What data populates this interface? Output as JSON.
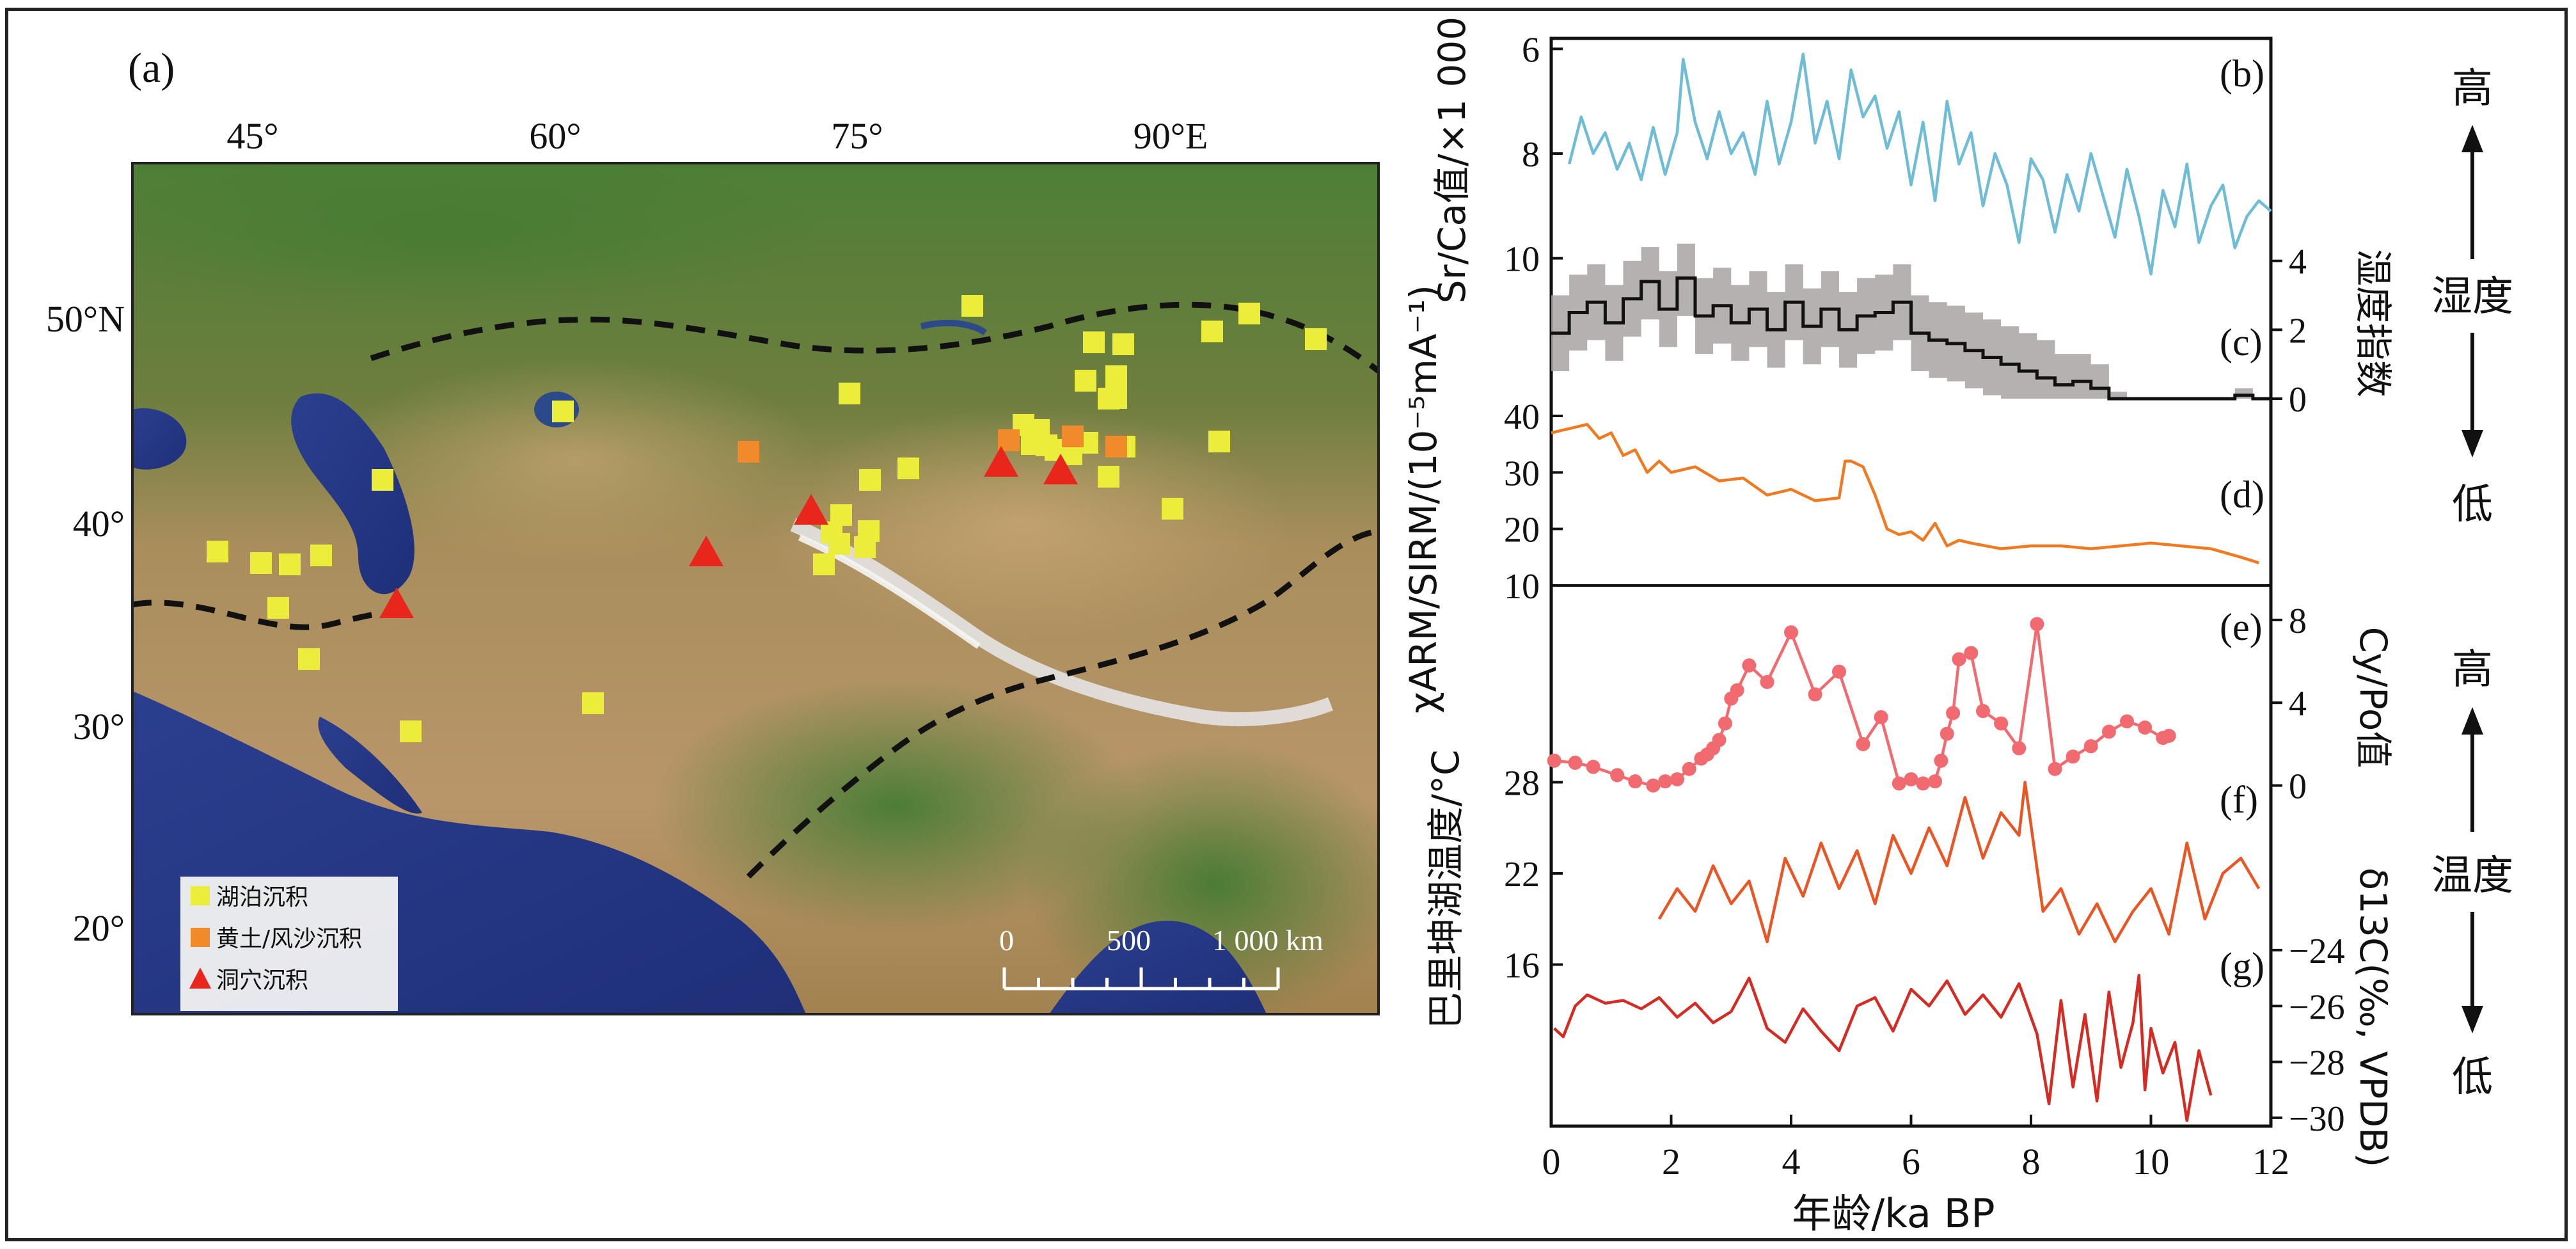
{
  "map": {
    "panel_label": "(a)",
    "lon_ticks": [
      "45°",
      "60°",
      "75°",
      "90°E"
    ],
    "lat_ticks": [
      "50°N",
      "40°",
      "30°",
      "20°"
    ],
    "legend": {
      "lake": "湖泊沉积",
      "loess": "黄土/风沙沉积",
      "cave": "洞穴沉积"
    },
    "scale_bar": {
      "zero": "0",
      "mid": "500",
      "end": "1 000 km"
    },
    "colors": {
      "lake": "#ecec3a",
      "loess": "#f08a2a",
      "cave": "#e8261c"
    }
  },
  "chart_data": [
    {
      "type": "line",
      "panel": "(b)",
      "ylabel": "Sr/Ca值/×1 000",
      "ylim": [
        10.2,
        5.8
      ],
      "y_ticks": [
        6,
        8,
        10
      ],
      "color": "#6fbcd6",
      "x": [
        0.3,
        0.5,
        0.7,
        0.9,
        1.1,
        1.3,
        1.5,
        1.7,
        1.9,
        2.1,
        2.2,
        2.4,
        2.6,
        2.8,
        3.0,
        3.2,
        3.4,
        3.6,
        3.8,
        4.0,
        4.2,
        4.4,
        4.6,
        4.8,
        5.0,
        5.2,
        5.4,
        5.6,
        5.8,
        6.0,
        6.2,
        6.4,
        6.6,
        6.8,
        7.0,
        7.2,
        7.4,
        7.6,
        7.8,
        8.0,
        8.2,
        8.4,
        8.6,
        8.8,
        9.0,
        9.2,
        9.4,
        9.6,
        9.8,
        10.0,
        10.2,
        10.4,
        10.6,
        10.8,
        11.0,
        11.2,
        11.4,
        11.6,
        11.8,
        12.0
      ],
      "values": [
        8.2,
        7.3,
        8.0,
        7.6,
        8.3,
        7.8,
        8.5,
        7.5,
        8.4,
        7.6,
        6.2,
        7.4,
        8.1,
        7.2,
        8.0,
        7.6,
        8.4,
        7.0,
        8.2,
        7.4,
        6.1,
        7.8,
        7.0,
        8.1,
        6.4,
        7.3,
        6.9,
        7.9,
        7.2,
        8.6,
        7.4,
        8.9,
        7.0,
        8.2,
        7.6,
        9.0,
        8.0,
        8.6,
        9.7,
        8.1,
        8.5,
        9.5,
        8.4,
        9.1,
        8.0,
        8.8,
        9.6,
        8.3,
        9.2,
        10.3,
        8.7,
        9.4,
        8.2,
        9.7,
        9.0,
        8.6,
        9.8,
        9.2,
        8.9,
        9.1
      ]
    },
    {
      "type": "line",
      "panel": "(c)",
      "ylabel": "湿度指数",
      "ylim": [
        -0.5,
        4.7
      ],
      "y_ticks": [
        0,
        2,
        4
      ],
      "color": "#111111",
      "band_color": "#a9a3a3",
      "x": [
        0,
        0.3,
        0.6,
        0.9,
        1.2,
        1.5,
        1.8,
        2.1,
        2.4,
        2.7,
        3.0,
        3.3,
        3.6,
        3.9,
        4.2,
        4.5,
        4.8,
        5.1,
        5.4,
        5.7,
        6.0,
        6.3,
        6.6,
        6.9,
        7.2,
        7.5,
        7.8,
        8.1,
        8.4,
        8.7,
        9.0,
        9.3,
        9.6,
        9.9,
        10.2,
        10.5,
        10.8,
        11.1,
        11.4,
        11.7,
        12.0
      ],
      "values": [
        1.9,
        2.5,
        2.8,
        2.2,
        2.9,
        3.4,
        2.6,
        3.5,
        2.4,
        2.7,
        2.2,
        2.6,
        2.0,
        2.8,
        2.1,
        2.6,
        2.0,
        2.4,
        2.5,
        2.8,
        1.9,
        1.7,
        1.6,
        1.4,
        1.2,
        1.0,
        0.8,
        0.6,
        0.4,
        0.5,
        0.3,
        0.0,
        0.0,
        0.0,
        0.0,
        0.0,
        0.0,
        0.0,
        0.1,
        0.0,
        0.0
      ],
      "upper": [
        3.0,
        3.6,
        3.9,
        3.3,
        4.0,
        4.4,
        3.7,
        4.5,
        3.5,
        3.8,
        3.3,
        3.7,
        3.1,
        3.9,
        3.2,
        3.7,
        3.1,
        3.5,
        3.6,
        3.9,
        3.0,
        2.8,
        2.7,
        2.5,
        2.3,
        2.1,
        1.9,
        1.7,
        1.3,
        1.3,
        1.0,
        0.2,
        0.0,
        0.0,
        0.0,
        0.0,
        0.0,
        0.0,
        0.3,
        0.0,
        0.0
      ],
      "lower": [
        0.8,
        1.4,
        1.7,
        1.1,
        1.8,
        2.3,
        1.5,
        2.4,
        1.3,
        1.6,
        1.1,
        1.5,
        0.9,
        1.7,
        1.0,
        1.5,
        0.9,
        1.3,
        1.4,
        1.7,
        0.8,
        0.6,
        0.5,
        0.3,
        0.1,
        0.0,
        0.0,
        0.0,
        0.0,
        0.0,
        0.0,
        0.0,
        0.0,
        0.0,
        0.0,
        0.0,
        0.0,
        0.0,
        0.0,
        0.0,
        0.0
      ]
    },
    {
      "type": "line",
      "panel": "(d)",
      "ylabel": "χARM/SIRM/(10⁻⁵mA⁻¹)",
      "ylim": [
        10,
        40
      ],
      "y_ticks": [
        10,
        20,
        30,
        40
      ],
      "color": "#f07a22",
      "x": [
        0,
        0.2,
        0.4,
        0.6,
        0.8,
        1.0,
        1.2,
        1.4,
        1.6,
        1.8,
        2.0,
        2.4,
        2.8,
        3.2,
        3.6,
        4.0,
        4.4,
        4.8,
        4.9,
        5.0,
        5.2,
        5.4,
        5.6,
        5.8,
        6.0,
        6.2,
        6.4,
        6.6,
        6.8,
        7.0,
        7.5,
        8.0,
        8.5,
        9.0,
        9.5,
        10.0,
        10.5,
        11.0,
        11.5,
        11.8
      ],
      "values": [
        37,
        37.5,
        38,
        38.5,
        36,
        37,
        33,
        34,
        30,
        32,
        30,
        31,
        28.5,
        29,
        26,
        27,
        25,
        25.5,
        32,
        32,
        31,
        26,
        20,
        19,
        19.5,
        18,
        21,
        17,
        18,
        17.5,
        16.5,
        17,
        17,
        16.5,
        17,
        17.5,
        17,
        16.5,
        15,
        14
      ]
    },
    {
      "type": "line",
      "panel": "(e)",
      "ylabel": "Cy/Po值",
      "ylim": [
        -1.0,
        9.2
      ],
      "y_ticks": [
        0,
        4,
        8
      ],
      "color": "#f06a6f",
      "markers": true,
      "x": [
        0.05,
        0.4,
        0.7,
        1.1,
        1.4,
        1.7,
        1.9,
        2.1,
        2.3,
        2.5,
        2.6,
        2.7,
        2.8,
        2.9,
        3.0,
        3.1,
        3.3,
        3.6,
        4.0,
        4.4,
        4.8,
        5.2,
        5.5,
        5.8,
        6.0,
        6.2,
        6.4,
        6.5,
        6.6,
        6.7,
        6.8,
        7.0,
        7.2,
        7.5,
        7.8,
        8.1,
        8.4,
        8.7,
        9.0,
        9.3,
        9.6,
        9.9,
        10.2,
        10.3
      ],
      "values": [
        1.2,
        1.1,
        0.9,
        0.5,
        0.2,
        0.0,
        0.2,
        0.3,
        0.8,
        1.3,
        1.5,
        1.8,
        2.2,
        3.0,
        4.2,
        4.6,
        5.8,
        5.0,
        7.4,
        4.4,
        5.5,
        2.0,
        3.3,
        0.1,
        0.3,
        0.1,
        0.2,
        1.2,
        2.5,
        3.5,
        6.1,
        6.4,
        3.6,
        3.0,
        1.8,
        7.8,
        0.8,
        1.4,
        1.9,
        2.6,
        3.1,
        2.8,
        2.3,
        2.4
      ]
    },
    {
      "type": "line",
      "panel": "(f)",
      "ylabel": "巴里坤湖温度/°C",
      "ylim": [
        14,
        30
      ],
      "y_ticks": [
        16,
        22,
        28
      ],
      "color": "#ea5524",
      "x": [
        1.8,
        2.1,
        2.4,
        2.7,
        3.0,
        3.3,
        3.6,
        3.9,
        4.2,
        4.5,
        4.8,
        5.1,
        5.4,
        5.7,
        6.0,
        6.3,
        6.6,
        6.9,
        7.2,
        7.5,
        7.8,
        7.9,
        8.2,
        8.5,
        8.8,
        9.1,
        9.4,
        9.7,
        10.0,
        10.3,
        10.6,
        10.9,
        11.2,
        11.5,
        11.8
      ],
      "values": [
        19,
        21,
        19.5,
        22.5,
        20,
        21.5,
        17.5,
        23,
        20.5,
        24,
        21,
        23.5,
        20,
        24.5,
        22,
        25,
        22.5,
        27,
        23,
        26,
        24.5,
        28,
        19.5,
        21,
        18,
        20,
        17.5,
        19.5,
        21,
        18,
        24,
        19,
        22,
        23,
        21
      ]
    },
    {
      "type": "line",
      "panel": "(g)",
      "ylabel": "δ13C(‰, VPDB)",
      "ylim": [
        -30.3,
        -23.2
      ],
      "y_ticks": [
        -24,
        -26,
        -28,
        -30
      ],
      "color": "#d42b22",
      "x": [
        0.05,
        0.2,
        0.4,
        0.6,
        0.9,
        1.2,
        1.5,
        1.8,
        2.1,
        2.4,
        2.7,
        3.0,
        3.3,
        3.6,
        3.9,
        4.2,
        4.5,
        4.8,
        5.1,
        5.4,
        5.7,
        6.0,
        6.3,
        6.6,
        6.9,
        7.2,
        7.5,
        7.8,
        8.1,
        8.3,
        8.5,
        8.7,
        8.9,
        9.1,
        9.3,
        9.5,
        9.7,
        9.8,
        9.9,
        10.0,
        10.2,
        10.4,
        10.6,
        10.8,
        11.0
      ],
      "values": [
        -26.8,
        -27.1,
        -26.0,
        -25.6,
        -25.9,
        -25.8,
        -26.1,
        -25.7,
        -26.4,
        -25.9,
        -26.6,
        -26.2,
        -25.0,
        -26.8,
        -27.3,
        -26.1,
        -26.9,
        -27.6,
        -26.0,
        -25.7,
        -26.9,
        -25.4,
        -26.0,
        -25.1,
        -26.3,
        -25.6,
        -26.4,
        -25.2,
        -27.0,
        -29.5,
        -25.8,
        -28.9,
        -26.3,
        -29.4,
        -25.5,
        -28.2,
        -26.6,
        -24.9,
        -29.0,
        -26.8,
        -28.4,
        -27.3,
        -30.1,
        -27.6,
        -29.2
      ]
    }
  ],
  "x_axis": {
    "label": "年龄/ka BP",
    "xlim": [
      0,
      12
    ],
    "ticks": [
      "0",
      "2",
      "4",
      "6",
      "8",
      "10",
      "12"
    ]
  },
  "side_labels": {
    "humidity": {
      "high": "高",
      "mid": "湿度",
      "low": "低"
    },
    "temperature": {
      "high": "高",
      "mid": "温度",
      "low": "低"
    }
  }
}
